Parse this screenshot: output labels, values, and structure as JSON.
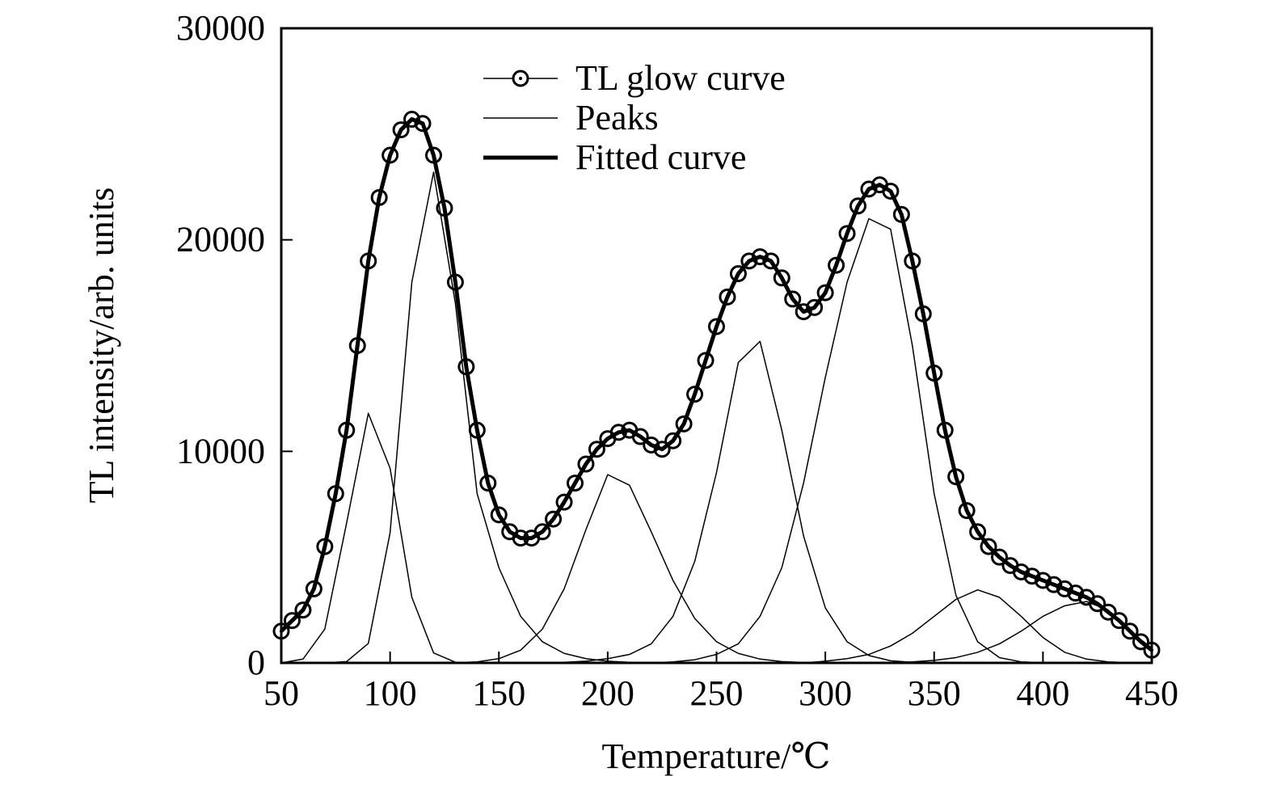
{
  "chart_data": {
    "type": "line",
    "xlabel": "Temperature/℃",
    "ylabel": "TL intensity/arb. units",
    "xlim": [
      50,
      450
    ],
    "xticks": [
      50,
      100,
      150,
      200,
      250,
      300,
      350,
      400,
      450
    ],
    "ylim": [
      0,
      30000
    ],
    "yticks": [
      0,
      10000,
      20000,
      30000
    ],
    "legend": "top",
    "series": [
      {
        "name": "TL glow curve",
        "color": "#000000",
        "marker": "circle",
        "x": [
          50,
          55,
          60,
          65,
          70,
          75,
          80,
          85,
          90,
          95,
          100,
          105,
          110,
          115,
          120,
          125,
          130,
          135,
          140,
          145,
          150,
          155,
          160,
          165,
          170,
          175,
          180,
          185,
          190,
          195,
          200,
          205,
          210,
          215,
          220,
          225,
          230,
          235,
          240,
          245,
          250,
          255,
          260,
          265,
          270,
          275,
          280,
          285,
          290,
          295,
          300,
          305,
          310,
          315,
          320,
          325,
          330,
          335,
          340,
          345,
          350,
          355,
          360,
          365,
          370,
          375,
          380,
          385,
          390,
          395,
          400,
          405,
          410,
          415,
          420,
          425,
          430,
          435,
          440,
          445,
          450
        ],
        "values": [
          1500,
          2000,
          2500,
          3500,
          5500,
          8000,
          11000,
          15000,
          19000,
          22000,
          24000,
          25200,
          25700,
          25500,
          24000,
          21500,
          18000,
          14000,
          11000,
          8500,
          7000,
          6200,
          5900,
          5900,
          6200,
          6800,
          7600,
          8500,
          9400,
          10100,
          10600,
          10900,
          11000,
          10700,
          10300,
          10100,
          10500,
          11300,
          12700,
          14300,
          15900,
          17300,
          18400,
          19000,
          19200,
          19000,
          18200,
          17200,
          16600,
          16800,
          17500,
          18800,
          20300,
          21600,
          22400,
          22600,
          22300,
          21200,
          19000,
          16500,
          13700,
          11000,
          8800,
          7200,
          6200,
          5500,
          5000,
          4600,
          4300,
          4100,
          3900,
          3700,
          3500,
          3300,
          3100,
          2800,
          2400,
          2000,
          1500,
          1000,
          600
        ]
      },
      {
        "name": "Peaks",
        "color": "#000000",
        "x": [
          50,
          60,
          70,
          80,
          90,
          100,
          110,
          120,
          130,
          140,
          150,
          160,
          170,
          180,
          190,
          200,
          210,
          220,
          230,
          240,
          250,
          260,
          270,
          280,
          290,
          300,
          310,
          320,
          330,
          340,
          350,
          360,
          370,
          380,
          390,
          400,
          410,
          420,
          430,
          440,
          450
        ],
        "curves": [
          [
            0,
            180,
            1600,
            6600,
            11800,
            9200,
            3100,
            470,
            30,
            0,
            0,
            0,
            0,
            0,
            0,
            0,
            0,
            0,
            0,
            0,
            0,
            0,
            0,
            0,
            0,
            0,
            0,
            0,
            0,
            0,
            0,
            0,
            0,
            0,
            0,
            0,
            0,
            0,
            0,
            0,
            0
          ],
          [
            0,
            0,
            0,
            60,
            920,
            6150,
            18000,
            23200,
            17000,
            8000,
            4500,
            2200,
            1000,
            450,
            200,
            80,
            30,
            0,
            0,
            0,
            0,
            0,
            0,
            0,
            0,
            0,
            0,
            0,
            0,
            0,
            0,
            0,
            0,
            0,
            0,
            0,
            0,
            0,
            0,
            0,
            0
          ],
          [
            0,
            0,
            0,
            0,
            0,
            0,
            0,
            0,
            10,
            50,
            200,
            600,
            1600,
            3500,
            6300,
            8900,
            8400,
            6200,
            3900,
            2100,
            1000,
            450,
            180,
            60,
            20,
            0,
            0,
            0,
            0,
            0,
            0,
            0,
            0,
            0,
            0,
            0,
            0,
            0,
            0,
            0,
            0
          ],
          [
            0,
            0,
            0,
            0,
            0,
            0,
            0,
            0,
            0,
            0,
            0,
            0,
            0,
            30,
            80,
            200,
            400,
            900,
            2200,
            4800,
            9000,
            14200,
            15200,
            11000,
            6000,
            2600,
            1000,
            350,
            100,
            30,
            0,
            0,
            0,
            0,
            0,
            0,
            0,
            0,
            0,
            0,
            0
          ],
          [
            0,
            0,
            0,
            0,
            0,
            0,
            0,
            0,
            0,
            0,
            0,
            0,
            0,
            0,
            0,
            0,
            0,
            0,
            50,
            150,
            400,
            900,
            2200,
            4500,
            8500,
            13500,
            18000,
            21000,
            20500,
            15000,
            8000,
            3200,
            1000,
            250,
            50,
            10,
            0,
            0,
            0,
            0,
            0
          ],
          [
            0,
            0,
            0,
            0,
            0,
            0,
            0,
            0,
            0,
            0,
            0,
            0,
            0,
            0,
            0,
            0,
            0,
            0,
            0,
            0,
            0,
            0,
            0,
            0,
            0,
            80,
            200,
            400,
            800,
            1400,
            2200,
            3000,
            3450,
            3100,
            2200,
            1200,
            500,
            180,
            50,
            10,
            0
          ],
          [
            0,
            0,
            0,
            0,
            0,
            0,
            0,
            0,
            0,
            0,
            0,
            0,
            0,
            0,
            0,
            0,
            0,
            0,
            0,
            0,
            0,
            0,
            0,
            0,
            0,
            0,
            0,
            0,
            0,
            50,
            120,
            250,
            500,
            900,
            1500,
            2200,
            2700,
            2900,
            2500,
            1500,
            700
          ]
        ]
      },
      {
        "name": "Fitted curve",
        "color": "#000000",
        "x": [
          50,
          55,
          60,
          65,
          70,
          75,
          80,
          85,
          90,
          95,
          100,
          105,
          110,
          115,
          120,
          125,
          130,
          135,
          140,
          145,
          150,
          155,
          160,
          165,
          170,
          175,
          180,
          185,
          190,
          195,
          200,
          205,
          210,
          215,
          220,
          225,
          230,
          235,
          240,
          245,
          250,
          255,
          260,
          265,
          270,
          275,
          280,
          285,
          290,
          295,
          300,
          305,
          310,
          315,
          320,
          325,
          330,
          335,
          340,
          345,
          350,
          355,
          360,
          365,
          370,
          375,
          380,
          385,
          390,
          395,
          400,
          405,
          410,
          415,
          420,
          425,
          430,
          435,
          440,
          445,
          450
        ],
        "values": [
          1500,
          2000,
          2500,
          3500,
          5500,
          8000,
          11000,
          15000,
          19000,
          22000,
          24000,
          25200,
          25700,
          25500,
          24000,
          21500,
          18000,
          14000,
          11000,
          8500,
          7000,
          6200,
          5900,
          5900,
          6200,
          6800,
          7600,
          8500,
          9400,
          10100,
          10600,
          10900,
          11000,
          10700,
          10300,
          10100,
          10500,
          11300,
          12700,
          14300,
          15900,
          17300,
          18400,
          19000,
          19200,
          19000,
          18200,
          17200,
          16600,
          16800,
          17500,
          18800,
          20300,
          21600,
          22400,
          22600,
          22300,
          21200,
          19000,
          16500,
          13700,
          11000,
          8800,
          7200,
          6200,
          5500,
          5000,
          4600,
          4300,
          4100,
          3900,
          3700,
          3500,
          3300,
          3100,
          2800,
          2400,
          2000,
          1500,
          1000,
          600
        ]
      }
    ]
  }
}
